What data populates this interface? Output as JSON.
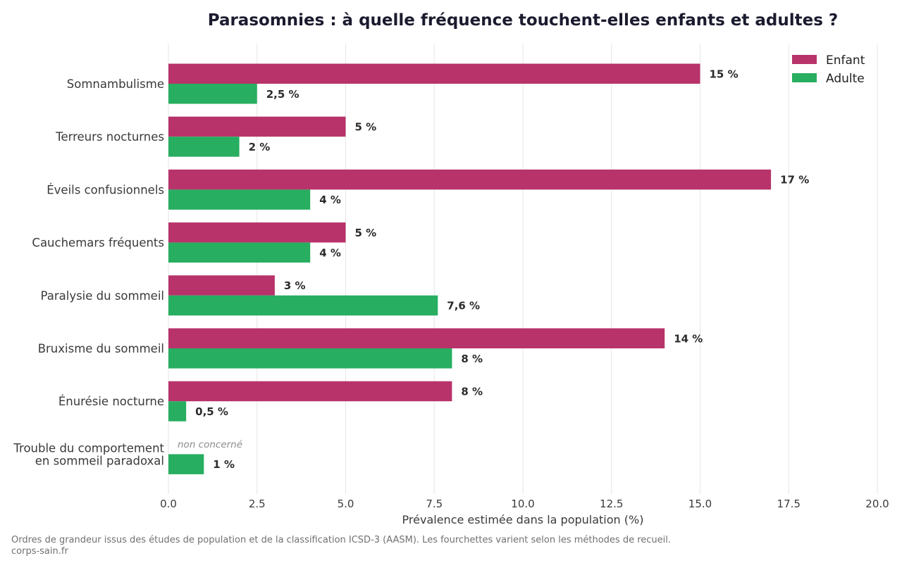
{
  "chart_data": {
    "type": "bar",
    "orientation": "horizontal",
    "title": "Parasomnies : à quelle fréquence touchent-elles enfants et adultes ?",
    "xlabel": "Prévalence estimée dans la population (%)",
    "ylabel": "",
    "xlim": [
      0,
      20
    ],
    "x_ticks": [
      0.0,
      2.5,
      5.0,
      7.5,
      10.0,
      12.5,
      15.0,
      17.5,
      20.0
    ],
    "x_tick_labels": [
      "0.0",
      "2.5",
      "5.0",
      "7.5",
      "10.0",
      "12.5",
      "15.0",
      "17.5",
      "20.0"
    ],
    "grid": "vertical",
    "legend_position": "top-right",
    "categories": [
      [
        "Somnambulisme"
      ],
      [
        "Terreurs nocturnes"
      ],
      [
        "Éveils confusionnels"
      ],
      [
        "Cauchemars fréquents"
      ],
      [
        "Paralysie du sommeil"
      ],
      [
        "Bruxisme du sommeil"
      ],
      [
        "Énurésie nocturne"
      ],
      [
        "Trouble du comportement",
        "en sommeil paradoxal"
      ]
    ],
    "series": [
      {
        "name": "Enfant",
        "color": "#b8336a",
        "values": [
          15,
          5,
          17,
          5,
          3,
          14,
          8,
          null
        ],
        "labels": [
          "15 %",
          "5 %",
          "17 %",
          "5 %",
          "3 %",
          "14 %",
          "8 %",
          "non concerné"
        ]
      },
      {
        "name": "Adulte",
        "color": "#27ae60",
        "values": [
          2.5,
          2,
          4,
          4,
          7.6,
          8,
          0.5,
          1
        ],
        "labels": [
          "2,5 %",
          "2 %",
          "4 %",
          "4 %",
          "7,6 %",
          "8 %",
          "0,5 %",
          "1 %"
        ]
      }
    ]
  },
  "footer": {
    "source_note": "Ordres de grandeur issus des études de population et de la classification ICSD-3 (AASM). Les fourchettes varient selon les méthodes de recueil.",
    "site": "corps-sain.fr"
  },
  "colors": {
    "grid": "#e6e6e6",
    "text": "#3a3a3a"
  }
}
